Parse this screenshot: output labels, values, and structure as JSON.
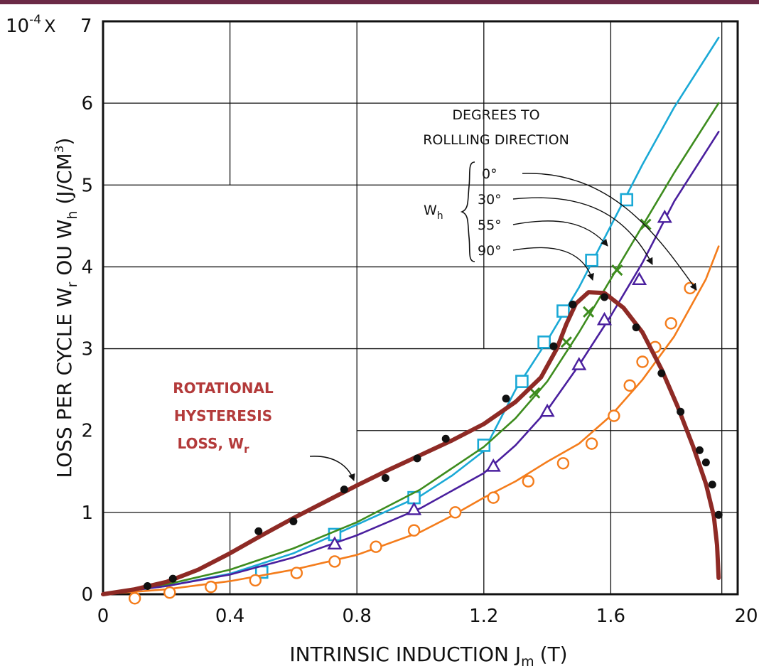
{
  "chart_data": {
    "type": "line",
    "xlabel": "INTRINSIC INDUCTION J",
    "xlabel_sub": "m",
    "xlabel_unit": "(T)",
    "ylabel_parts": [
      "LOSS PER CYCLE W",
      "r",
      " OU W",
      "h",
      "  (J/CM",
      "3",
      ")"
    ],
    "y_multiplier": "10",
    "y_multiplier_exp": "-4",
    "y_multiplier_x": "X",
    "xlim": [
      0,
      2.0
    ],
    "ylim": [
      0,
      7
    ],
    "x_ticks": [
      "0",
      "0.4",
      "0.8",
      "1.2",
      "1.6",
      "20"
    ],
    "y_ticks": [
      "0",
      "1",
      "2",
      "3",
      "4",
      "5",
      "6",
      "7"
    ],
    "grid": true,
    "annotation_header": [
      "DEGREES TO",
      "ROLLLING DIRECTION"
    ],
    "wh_label": "W",
    "wh_sub": "h",
    "angle_labels": [
      "0°",
      "30°",
      "55°",
      "90°"
    ],
    "rot_label": [
      "ROTATIONAL",
      "HYSTERESIS",
      "LOSS, W"
    ],
    "rot_label_sub": "r",
    "series": [
      {
        "name": "0°",
        "color": "#1aa9d6",
        "marker": "square",
        "line": [
          [
            0,
            0
          ],
          [
            0.2,
            0.1
          ],
          [
            0.4,
            0.25
          ],
          [
            0.6,
            0.5
          ],
          [
            0.8,
            0.85
          ],
          [
            1.0,
            1.2
          ],
          [
            1.1,
            1.45
          ],
          [
            1.2,
            1.75
          ],
          [
            1.3,
            2.5
          ],
          [
            1.4,
            3.1
          ],
          [
            1.5,
            3.75
          ],
          [
            1.6,
            4.5
          ],
          [
            1.7,
            5.25
          ],
          [
            1.8,
            5.95
          ],
          [
            1.94,
            6.8
          ]
        ],
        "points": [
          [
            0.5,
            0.27
          ],
          [
            0.73,
            0.73
          ],
          [
            0.98,
            1.18
          ],
          [
            1.2,
            1.82
          ],
          [
            1.32,
            2.6
          ],
          [
            1.39,
            3.08
          ],
          [
            1.45,
            3.46
          ],
          [
            1.54,
            4.08
          ],
          [
            1.65,
            4.82
          ]
        ]
      },
      {
        "name": "30°",
        "color": "#3d8c1e",
        "marker": "x",
        "line": [
          [
            0,
            0
          ],
          [
            0.2,
            0.12
          ],
          [
            0.4,
            0.3
          ],
          [
            0.6,
            0.56
          ],
          [
            0.8,
            0.88
          ],
          [
            1.0,
            1.28
          ],
          [
            1.2,
            1.8
          ],
          [
            1.3,
            2.15
          ],
          [
            1.4,
            2.6
          ],
          [
            1.5,
            3.2
          ],
          [
            1.6,
            3.85
          ],
          [
            1.7,
            4.5
          ],
          [
            1.8,
            5.15
          ],
          [
            1.94,
            6.0
          ]
        ],
        "points": [
          [
            1.36,
            2.46
          ],
          [
            1.46,
            3.08
          ],
          [
            1.53,
            3.45
          ],
          [
            1.62,
            3.96
          ],
          [
            1.71,
            4.52
          ]
        ]
      },
      {
        "name": "55°",
        "color": "#4a1f9e",
        "marker": "triangle",
        "line": [
          [
            0,
            0
          ],
          [
            0.2,
            0.1
          ],
          [
            0.4,
            0.24
          ],
          [
            0.6,
            0.45
          ],
          [
            0.8,
            0.72
          ],
          [
            1.0,
            1.05
          ],
          [
            1.2,
            1.48
          ],
          [
            1.3,
            1.82
          ],
          [
            1.4,
            2.25
          ],
          [
            1.5,
            2.8
          ],
          [
            1.6,
            3.4
          ],
          [
            1.7,
            4.05
          ],
          [
            1.8,
            4.8
          ],
          [
            1.94,
            5.65
          ]
        ],
        "points": [
          [
            0.73,
            0.61
          ],
          [
            0.98,
            1.03
          ],
          [
            1.23,
            1.56
          ],
          [
            1.4,
            2.23
          ],
          [
            1.5,
            2.8
          ],
          [
            1.58,
            3.35
          ],
          [
            1.69,
            3.84
          ],
          [
            1.77,
            4.6
          ]
        ]
      },
      {
        "name": "90°",
        "color": "#f47c1b",
        "marker": "circle",
        "line": [
          [
            0,
            0
          ],
          [
            0.2,
            0.06
          ],
          [
            0.4,
            0.16
          ],
          [
            0.6,
            0.3
          ],
          [
            0.8,
            0.48
          ],
          [
            1.0,
            0.76
          ],
          [
            1.1,
            0.96
          ],
          [
            1.2,
            1.18
          ],
          [
            1.3,
            1.38
          ],
          [
            1.4,
            1.62
          ],
          [
            1.5,
            1.84
          ],
          [
            1.6,
            2.18
          ],
          [
            1.7,
            2.62
          ],
          [
            1.8,
            3.15
          ],
          [
            1.9,
            3.85
          ],
          [
            1.94,
            4.25
          ]
        ],
        "points": [
          [
            0.1,
            -0.05
          ],
          [
            0.21,
            0.02
          ],
          [
            0.34,
            0.09
          ],
          [
            0.48,
            0.17
          ],
          [
            0.61,
            0.26
          ],
          [
            0.73,
            0.4
          ],
          [
            0.86,
            0.58
          ],
          [
            0.98,
            0.78
          ],
          [
            1.11,
            1.0
          ],
          [
            1.23,
            1.18
          ],
          [
            1.34,
            1.38
          ],
          [
            1.45,
            1.6
          ],
          [
            1.54,
            1.84
          ],
          [
            1.61,
            2.18
          ],
          [
            1.66,
            2.55
          ],
          [
            1.7,
            2.84
          ],
          [
            1.74,
            3.02
          ],
          [
            1.79,
            3.31
          ],
          [
            1.85,
            3.74
          ]
        ]
      },
      {
        "name": "ROTATIONAL HYSTERESIS LOSS, Wr",
        "color": "#8e2a25",
        "marker": "dot",
        "line": [
          [
            0,
            0
          ],
          [
            0.1,
            0.06
          ],
          [
            0.2,
            0.15
          ],
          [
            0.3,
            0.3
          ],
          [
            0.4,
            0.5
          ],
          [
            0.5,
            0.72
          ],
          [
            0.6,
            0.93
          ],
          [
            0.7,
            1.13
          ],
          [
            0.8,
            1.33
          ],
          [
            0.9,
            1.52
          ],
          [
            1.0,
            1.7
          ],
          [
            1.1,
            1.88
          ],
          [
            1.2,
            2.08
          ],
          [
            1.3,
            2.35
          ],
          [
            1.38,
            2.65
          ],
          [
            1.43,
            3.0
          ],
          [
            1.46,
            3.3
          ],
          [
            1.49,
            3.55
          ],
          [
            1.53,
            3.69
          ],
          [
            1.58,
            3.68
          ],
          [
            1.64,
            3.5
          ],
          [
            1.7,
            3.2
          ],
          [
            1.76,
            2.75
          ],
          [
            1.81,
            2.3
          ],
          [
            1.86,
            1.8
          ],
          [
            1.9,
            1.35
          ],
          [
            1.925,
            0.95
          ],
          [
            1.935,
            0.6
          ],
          [
            1.94,
            0.2
          ]
        ],
        "points": [
          [
            0.14,
            0.1
          ],
          [
            0.22,
            0.19
          ],
          [
            0.49,
            0.77
          ],
          [
            0.6,
            0.89
          ],
          [
            0.76,
            1.28
          ],
          [
            0.89,
            1.42
          ],
          [
            0.99,
            1.66
          ],
          [
            1.08,
            1.9
          ],
          [
            1.27,
            2.39
          ],
          [
            1.42,
            3.03
          ],
          [
            1.48,
            3.54
          ],
          [
            1.58,
            3.63
          ],
          [
            1.68,
            3.26
          ],
          [
            1.76,
            2.7
          ],
          [
            1.82,
            2.23
          ],
          [
            1.88,
            1.76
          ],
          [
            1.9,
            1.61
          ],
          [
            1.92,
            1.34
          ],
          [
            1.94,
            0.97
          ]
        ]
      }
    ]
  }
}
